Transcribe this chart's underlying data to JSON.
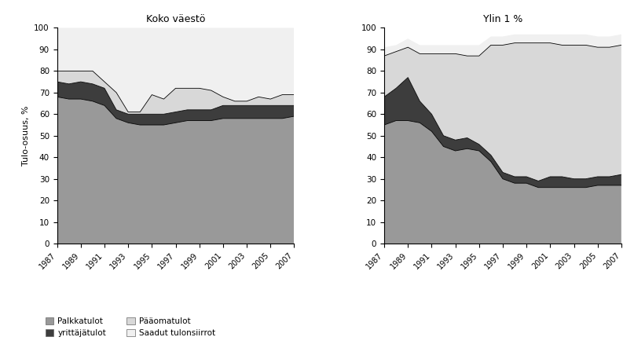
{
  "years": [
    1987,
    1988,
    1989,
    1990,
    1991,
    1992,
    1993,
    1994,
    1995,
    1996,
    1997,
    1998,
    1999,
    2000,
    2001,
    2002,
    2003,
    2004,
    2005,
    2006,
    2007
  ],
  "left_palkka": [
    68,
    67,
    67,
    66,
    64,
    58,
    56,
    55,
    55,
    55,
    56,
    57,
    57,
    57,
    58,
    58,
    58,
    58,
    58,
    58,
    59
  ],
  "left_yritt": [
    7,
    7,
    8,
    8,
    8,
    4,
    4,
    5,
    5,
    5,
    5,
    5,
    5,
    5,
    6,
    6,
    6,
    6,
    6,
    6,
    5
  ],
  "left_paao": [
    5,
    6,
    5,
    6,
    3,
    8,
    1,
    1,
    9,
    7,
    11,
    10,
    10,
    9,
    4,
    2,
    2,
    4,
    3,
    5,
    5
  ],
  "left_saadut": [
    20,
    20,
    20,
    20,
    25,
    30,
    39,
    39,
    31,
    33,
    28,
    28,
    28,
    29,
    32,
    34,
    34,
    32,
    33,
    31,
    31
  ],
  "right_palkka": [
    55,
    57,
    57,
    56,
    52,
    45,
    43,
    44,
    43,
    38,
    30,
    28,
    28,
    26,
    26,
    26,
    26,
    26,
    27,
    27,
    27
  ],
  "right_yritt": [
    13,
    15,
    20,
    10,
    8,
    5,
    5,
    5,
    3,
    3,
    3,
    3,
    3,
    3,
    5,
    5,
    4,
    4,
    4,
    4,
    5
  ],
  "right_paao": [
    19,
    17,
    14,
    22,
    28,
    38,
    40,
    38,
    41,
    51,
    59,
    62,
    62,
    64,
    62,
    61,
    62,
    62,
    60,
    60,
    60
  ],
  "right_saadut": [
    4,
    3,
    4,
    4,
    4,
    4,
    4,
    5,
    5,
    4,
    4,
    4,
    4,
    4,
    4,
    5,
    5,
    5,
    5,
    5,
    5
  ],
  "left_title": "Koko väestö",
  "right_title": "Ylin 1 %",
  "ylabel": "Tulo-osuus, %",
  "legend_entries": [
    "Palkkatulot",
    "yrittäjätulot",
    "Pääomatulot",
    "Saadut tulonsiirrot"
  ],
  "color_palkka": "#999999",
  "color_yritt": "#3d3d3d",
  "color_paao": "#d8d8d8",
  "color_saadut": "#f0f0f0"
}
